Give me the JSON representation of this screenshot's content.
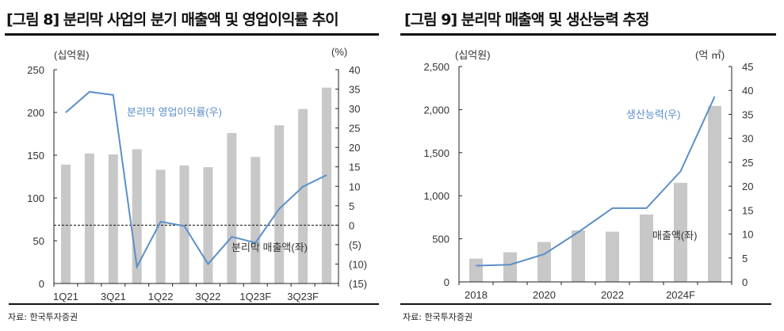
{
  "figures": [
    {
      "title": "[그림 8] 분리막 사업의 분기 매출액 및 영업이익률 추이",
      "source": "자료: 한국투자증권"
    },
    {
      "title": "[그림 9] 분리막 매출액 및 생산능력 추정",
      "source": "자료: 한국투자증권"
    }
  ],
  "chart_data": [
    {
      "type": "bar+line",
      "categories": [
        "1Q21",
        "2Q21",
        "3Q21",
        "4Q21",
        "1Q22",
        "2Q22",
        "3Q22",
        "4Q22",
        "1Q23F",
        "2Q23F",
        "3Q23F",
        "4Q23F"
      ],
      "x_tick_labels": [
        "1Q21",
        "3Q21",
        "1Q22",
        "3Q22",
        "1Q23F",
        "3Q23F"
      ],
      "y_left_unit": "(십억원)",
      "y_right_unit": "(%)",
      "y_left_ticks": [
        "250",
        "200",
        "150",
        "100",
        "50",
        "0"
      ],
      "y_right_ticks": [
        "40",
        "35",
        "30",
        "25",
        "20",
        "15",
        "10",
        "5",
        "0",
        "(5)",
        "(10)",
        "(15)"
      ],
      "ylim_left": [
        0,
        250
      ],
      "ylim_right": [
        -15,
        40
      ],
      "zero_line": "dashed",
      "series": [
        {
          "name": "분리막 매출액(좌)",
          "type": "bar",
          "axis": "left",
          "color": "#c8c8c8",
          "values": [
            139,
            152,
            151,
            157,
            133,
            138,
            136,
            176,
            148,
            185,
            204,
            229
          ]
        },
        {
          "name": "분리막 영업이익률(우)",
          "type": "line",
          "axis": "right",
          "color": "#5b8fc9",
          "values": [
            29,
            34.3,
            33.5,
            -10.7,
            0.9,
            -0.2,
            -10,
            -3,
            -4.5,
            4.2,
            9.9,
            12.9
          ]
        }
      ]
    },
    {
      "type": "bar+line",
      "categories": [
        "2018",
        "2019",
        "2020",
        "2021",
        "2022",
        "2023",
        "2024F",
        "2025F"
      ],
      "x_tick_labels": [
        "2018",
        "2020",
        "2022",
        "2024F"
      ],
      "y_left_unit": "(십억원)",
      "y_right_unit": "(억  ㎡)",
      "y_left_ticks": [
        "2,500",
        "2,000",
        "1,500",
        "1,000",
        "500",
        "0"
      ],
      "y_right_ticks": [
        "45",
        "40",
        "35",
        "30",
        "25",
        "20",
        "15",
        "10",
        "5",
        "0"
      ],
      "ylim_left": [
        0,
        2500
      ],
      "ylim_right": [
        0,
        45
      ],
      "series": [
        {
          "name": "매출액(좌)",
          "type": "bar",
          "axis": "left",
          "color": "#c8c8c8",
          "values": [
            270,
            344,
            463,
            598,
            583,
            782,
            1150,
            2043
          ]
        },
        {
          "name": "생산능력(우)",
          "type": "line",
          "axis": "right",
          "color": "#5b8fc9",
          "values": [
            3.4,
            3.6,
            5.8,
            10.4,
            15.4,
            15.4,
            23.1,
            38.7
          ]
        }
      ]
    }
  ]
}
